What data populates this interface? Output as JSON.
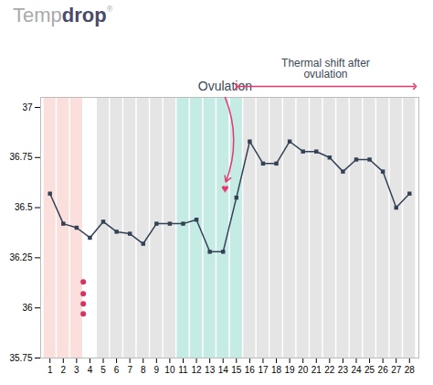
{
  "chart_data": {
    "type": "line",
    "x": [
      1,
      2,
      3,
      4,
      5,
      6,
      7,
      8,
      9,
      10,
      11,
      12,
      13,
      14,
      15,
      16,
      17,
      18,
      19,
      20,
      21,
      22,
      23,
      24,
      25,
      26,
      27,
      28
    ],
    "values": [
      36.57,
      36.42,
      36.4,
      36.35,
      36.43,
      36.38,
      36.37,
      36.32,
      36.42,
      36.42,
      36.42,
      36.44,
      36.28,
      36.28,
      36.55,
      36.83,
      36.72,
      36.72,
      36.83,
      36.78,
      36.78,
      36.75,
      36.68,
      36.74,
      36.74,
      36.68,
      36.5,
      36.57
    ],
    "color": "#334155",
    "marker": "square",
    "xlim": [
      0.3,
      28.7
    ],
    "xticks": [
      1,
      2,
      3,
      4,
      5,
      6,
      7,
      8,
      9,
      10,
      11,
      12,
      13,
      14,
      15,
      16,
      17,
      18,
      19,
      20,
      21,
      22,
      23,
      24,
      25,
      26,
      27,
      28
    ],
    "ylim": [
      35.75,
      37.05
    ],
    "yticks": [
      35.75,
      36,
      36.25,
      36.5,
      36.75,
      37
    ],
    "grid": false,
    "bands": [
      {
        "days": [
          1,
          2,
          3
        ],
        "color": "#f9cac4"
      },
      {
        "days": [
          11,
          12,
          13,
          14,
          15
        ],
        "color": "#9de0d4"
      },
      {
        "days": [
          5,
          6,
          7,
          8,
          9,
          10,
          16,
          17,
          18,
          19,
          20,
          21,
          22,
          23,
          24,
          25,
          26,
          27,
          28
        ],
        "color": "#d4d4d4"
      }
    ],
    "period_dots": {
      "x": 3.5,
      "y": [
        36.13,
        36.07,
        36.02,
        35.97
      ],
      "color": "#d63362"
    },
    "annotations": [
      {
        "text": "Ovulation",
        "x": 14.15,
        "y": 36.62,
        "symbol": "♥",
        "color": "#e8366e"
      },
      {
        "text": "Thermal shift after\novulation",
        "x": [
          15,
          28.4
        ],
        "color": "#e8366e"
      }
    ],
    "logo": [
      {
        "text": "Temp",
        "color": "#aaaaaa"
      },
      {
        "text": "drop",
        "color": "#4a4a6a"
      },
      {
        "text": "®",
        "color": "#aaaaaa"
      }
    ]
  }
}
